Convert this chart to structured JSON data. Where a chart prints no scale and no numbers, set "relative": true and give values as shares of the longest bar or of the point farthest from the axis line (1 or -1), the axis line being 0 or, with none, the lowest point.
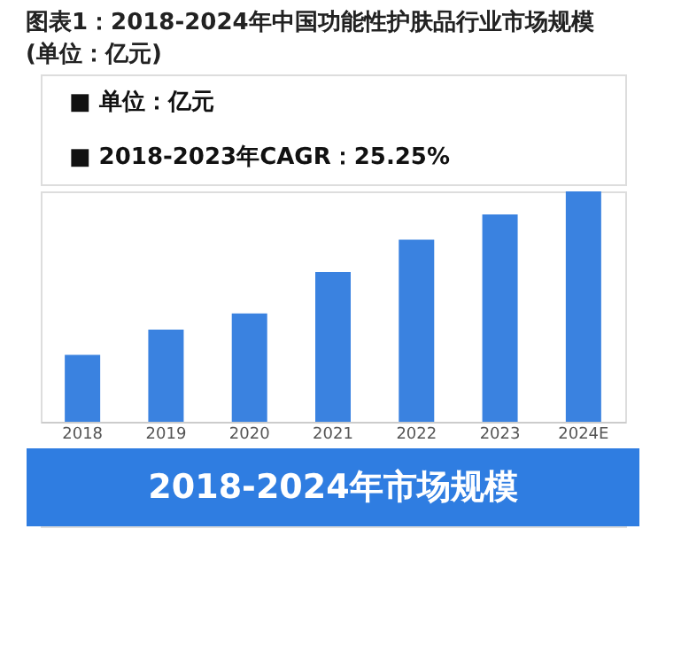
{
  "chart_data": {
    "type": "bar",
    "title": "图表1：2018-2024年中国功能性护肤品行业市场规模(单位：亿元)",
    "subtitle": "2018-2024年市场规模",
    "annotations": [
      "■  单位：亿元",
      "■  2018-2023年CAGR：25.25%"
    ],
    "categories": [
      "2018",
      "2019",
      "2020",
      "2021",
      "2022",
      "2023",
      "2024E"
    ],
    "values": [
      0.29,
      0.4,
      0.47,
      0.65,
      0.79,
      0.9,
      1.0
    ],
    "color": "#3a82e0",
    "relative": true,
    "grid": false
  }
}
